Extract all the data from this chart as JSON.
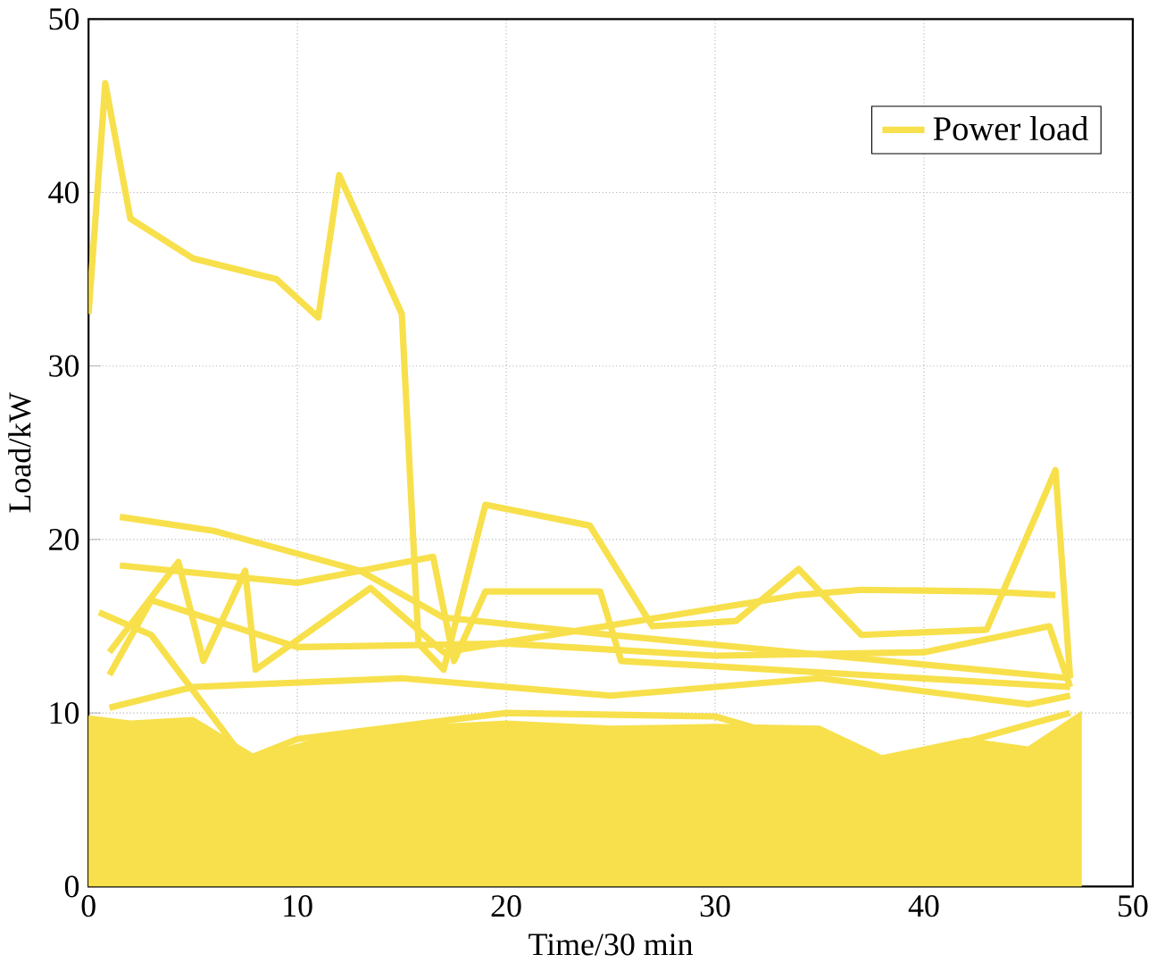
{
  "chart_data": {
    "type": "line",
    "xlabel": "Time/30 min",
    "ylabel": "Load/kW",
    "xlim": [
      0,
      50
    ],
    "ylim": [
      0,
      50
    ],
    "xticks": [
      0,
      10,
      20,
      30,
      40,
      50
    ],
    "yticks": [
      0,
      10,
      20,
      30,
      40,
      50
    ],
    "grid": true,
    "legend": "top right",
    "series": [
      {
        "type": "area",
        "color": "#f7e04b",
        "x": [
          0,
          2,
          5,
          8,
          11,
          15,
          20,
          25,
          30,
          35,
          38,
          42,
          45,
          47.5
        ],
        "values": [
          9.8,
          9.5,
          9.7,
          7.5,
          8.5,
          9.2,
          9.5,
          9.2,
          9.3,
          9.2,
          7.5,
          8.5,
          8,
          10
        ]
      },
      {
        "name": "Power load",
        "color": "#f7e04b",
        "x": [
          0,
          0.8,
          2,
          5,
          9,
          11,
          12,
          15,
          15.8,
          17,
          19,
          24,
          27,
          31,
          34,
          37,
          43,
          46.3,
          47
        ],
        "values": [
          33,
          46.3,
          38.5,
          36.2,
          35,
          32.8,
          41,
          33,
          14,
          12.5,
          22,
          20.8,
          15,
          15.3,
          18.3,
          14.5,
          14.8,
          24,
          12
        ]
      },
      {
        "color": "#f7e04b",
        "x": [
          1.5,
          6,
          13,
          17,
          25,
          47
        ],
        "values": [
          21.3,
          20.5,
          18.2,
          15.5,
          14.5,
          12
        ]
      },
      {
        "color": "#f7e04b",
        "x": [
          1.5,
          10,
          16.5,
          17.5,
          19,
          24.5,
          25.5,
          47
        ],
        "values": [
          18.5,
          17.5,
          19,
          13,
          17,
          17,
          13,
          11.5
        ]
      },
      {
        "color": "#f7e04b",
        "x": [
          0.5,
          3,
          7.5,
          10,
          20,
          30,
          38,
          47
        ],
        "values": [
          15.8,
          14.5,
          7.3,
          8.5,
          10,
          9.8,
          7,
          10
        ]
      },
      {
        "color": "#f7e04b",
        "x": [
          1,
          4.3,
          5.5,
          7.5,
          8,
          13.5,
          17,
          34,
          37,
          43,
          46.3
        ],
        "values": [
          13.5,
          18.7,
          13,
          18.2,
          12.5,
          17.2,
          13.5,
          16.8,
          17.1,
          17,
          16.8
        ]
      },
      {
        "color": "#f7e04b",
        "x": [
          1,
          3,
          10,
          20,
          30,
          40,
          46,
          47
        ],
        "values": [
          12.2,
          16.5,
          13.8,
          14,
          13.3,
          13.5,
          15,
          11.5
        ]
      },
      {
        "color": "#f7e04b",
        "x": [
          1,
          5,
          15,
          25,
          35,
          45,
          47
        ],
        "values": [
          10.3,
          11.5,
          12,
          11,
          12,
          10.5,
          11
        ]
      }
    ]
  }
}
